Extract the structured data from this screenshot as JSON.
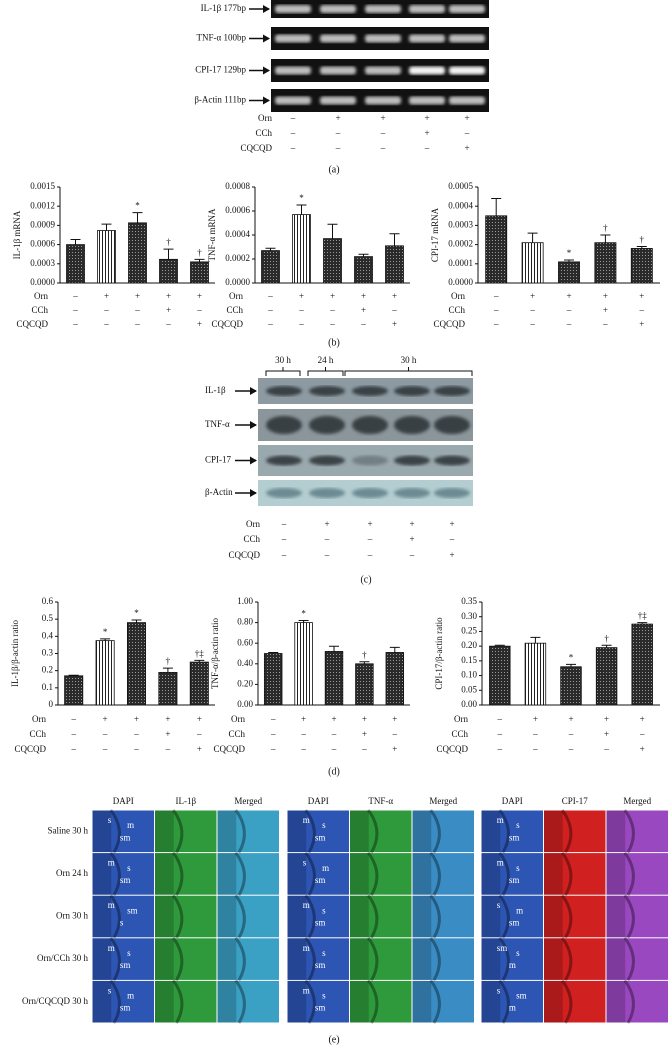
{
  "panel_labels": [
    "(a)",
    "(b)",
    "(c)",
    "(d)",
    "(e)"
  ],
  "conditions": [
    {
      "name": "Orn",
      "signs": [
        "–",
        "+",
        "+",
        "+",
        "+"
      ]
    },
    {
      "name": "CCh",
      "signs": [
        "–",
        "–",
        "–",
        "+",
        "–"
      ]
    },
    {
      "name": "CQCQD",
      "signs": [
        "–",
        "–",
        "–",
        "–",
        "+"
      ]
    }
  ],
  "panel_a": {
    "rows": [
      "IL-1β 177bp",
      "TNF-α 100bp",
      "CPI-17 129bp",
      "β-Actin 111bp"
    ]
  },
  "panel_c": {
    "time_brackets": [
      "30 h",
      "24 h",
      "30 h"
    ],
    "rows": [
      "IL-1β",
      "TNF-α",
      "CPI-17",
      "β-Actin"
    ]
  },
  "chart_data": [
    {
      "type": "bar",
      "y_label": "IL-1β mRNA",
      "values": [
        0.0006,
        0.00082,
        0.00094,
        0.00037,
        0.00033
      ],
      "errors": [
        8e-05,
        0.0001,
        0.00016,
        0.00016,
        4e-05
      ],
      "annotations": [
        null,
        null,
        "*",
        "†",
        "†"
      ],
      "bar_styles": [
        "crosshatch",
        "stripes",
        "crosshatch",
        "crosshatch",
        "crosshatch"
      ],
      "ylim": [
        0,
        0.0015
      ],
      "yticks": [
        {
          "value": 0,
          "label": "0.0000"
        },
        {
          "value": 0.0003,
          "label": "0.0003"
        },
        {
          "value": 0.0006,
          "label": "0.0006"
        },
        {
          "value": 0.0009,
          "label": "0.0009"
        },
        {
          "value": 0.0012,
          "label": "0.0012"
        },
        {
          "value": 0.0015,
          "label": "0.0015"
        }
      ]
    },
    {
      "type": "bar",
      "y_label": "TNF-α mRNA",
      "values": [
        0.00027,
        0.00057,
        0.00037,
        0.00022,
        0.00031
      ],
      "errors": [
        2e-05,
        8e-05,
        0.00012,
        2e-05,
        0.0001
      ],
      "annotations": [
        null,
        "*",
        null,
        null,
        null
      ],
      "bar_styles": [
        "crosshatch",
        "stripes",
        "crosshatch",
        "crosshatch",
        "crosshatch"
      ],
      "ylim": [
        0,
        0.0008
      ],
      "yticks": [
        {
          "value": 0,
          "label": "0.0000"
        },
        {
          "value": 0.0002,
          "label": "0.0002"
        },
        {
          "value": 0.0004,
          "label": "0.0004"
        },
        {
          "value": 0.0006,
          "label": "0.0006"
        },
        {
          "value": 0.0008,
          "label": "0.0008"
        }
      ]
    },
    {
      "type": "bar",
      "y_label": "CPI-17 mRNA",
      "values": [
        0.00035,
        0.00021,
        0.00011,
        0.00021,
        0.00018
      ],
      "errors": [
        9e-05,
        5e-05,
        1e-05,
        4e-05,
        1e-05
      ],
      "annotations": [
        null,
        null,
        "*",
        "†",
        "†"
      ],
      "bar_styles": [
        "crosshatch",
        "stripes",
        "crosshatch",
        "crosshatch",
        "crosshatch"
      ],
      "ylim": [
        0,
        0.0005
      ],
      "yticks": [
        {
          "value": 0,
          "label": "0.0000"
        },
        {
          "value": 0.0001,
          "label": "0.0001"
        },
        {
          "value": 0.0002,
          "label": "0.0002"
        },
        {
          "value": 0.0003,
          "label": "0.0003"
        },
        {
          "value": 0.0004,
          "label": "0.0004"
        },
        {
          "value": 0.0005,
          "label": "0.0005"
        }
      ]
    },
    {
      "type": "bar",
      "y_label": "IL-1β/β-actin ratio",
      "values": [
        0.17,
        0.375,
        0.48,
        0.19,
        0.25
      ],
      "errors": [
        0.003,
        0.01,
        0.015,
        0.025,
        0.01
      ],
      "annotations": [
        null,
        "*",
        "*",
        "†",
        "†‡"
      ],
      "bar_styles": [
        "crosshatch",
        "stripes",
        "crosshatch",
        "crosshatch",
        "crosshatch"
      ],
      "ylim": [
        0,
        0.6
      ],
      "yticks": [
        0,
        0.1,
        0.2,
        0.3,
        0.4,
        0.5,
        0.6
      ]
    },
    {
      "type": "bar",
      "y_label": "TNF-α/β-actin ratio",
      "values": [
        0.5,
        0.8,
        0.52,
        0.4,
        0.51
      ],
      "errors": [
        0.01,
        0.02,
        0.05,
        0.02,
        0.05
      ],
      "annotations": [
        null,
        "*",
        null,
        "†",
        null
      ],
      "bar_styles": [
        "crosshatch",
        "stripes",
        "crosshatch",
        "crosshatch",
        "crosshatch"
      ],
      "ylim": [
        0,
        1
      ],
      "yticks": [
        {
          "value": 0,
          "label": "0.00"
        },
        {
          "value": 0.2,
          "label": "0.20"
        },
        {
          "value": 0.4,
          "label": "0.40"
        },
        {
          "value": 0.6,
          "label": "0.60"
        },
        {
          "value": 0.8,
          "label": "0.80"
        },
        {
          "value": 1,
          "label": "1.00"
        }
      ]
    },
    {
      "type": "bar",
      "y_label": "CPI-17/β-actin ratio",
      "values": [
        0.2,
        0.21,
        0.13,
        0.195,
        0.275
      ],
      "errors": [
        0.003,
        0.02,
        0.008,
        0.008,
        0.005
      ],
      "annotations": [
        null,
        null,
        "*",
        "†",
        "†‡"
      ],
      "bar_styles": [
        "crosshatch",
        "stripes",
        "crosshatch",
        "crosshatch",
        "crosshatch"
      ],
      "ylim": [
        0,
        0.35
      ],
      "yticks": [
        {
          "value": 0,
          "label": "0.00"
        },
        {
          "value": 0.05,
          "label": "0.05"
        },
        {
          "value": 0.1,
          "label": "0.10"
        },
        {
          "value": 0.15,
          "label": "0.15"
        },
        {
          "value": 0.2,
          "label": "0.20"
        },
        {
          "value": 0.25,
          "label": "0.25"
        },
        {
          "value": 0.3,
          "label": "0.30"
        },
        {
          "value": 0.35,
          "label": "0.35"
        }
      ]
    }
  ],
  "panel_e": {
    "row_labels": [
      "Saline 30 h",
      "Orn 24 h",
      "Orn 30 h",
      "Orn/CCh 30 h",
      "Orn/CQCQD 30 h"
    ],
    "groups": [
      {
        "channels": [
          "DAPI",
          "IL-1β",
          "Merged"
        ],
        "colors": [
          "#2d55b4",
          "#2f9a3c",
          "#3aa0c4"
        ],
        "tissue_labels": [
          [
            "s",
            "m",
            "sm"
          ],
          [
            "m",
            "s",
            "sm"
          ],
          [
            "m",
            "sm",
            "s"
          ],
          [
            "m",
            "s",
            "sm"
          ],
          [
            "s",
            "m",
            "sm"
          ]
        ]
      },
      {
        "channels": [
          "DAPI",
          "TNF-α",
          "Merged"
        ],
        "colors": [
          "#2d55b4",
          "#2f9a3c",
          "#3a8cc4"
        ],
        "tissue_labels": [
          [
            "m",
            "s",
            "sm"
          ],
          [
            "s",
            "m",
            "sm"
          ],
          [
            "m",
            "s",
            "sm"
          ],
          [
            "m",
            "s",
            "sm"
          ],
          [
            "m",
            "s",
            "sm"
          ]
        ]
      },
      {
        "channels": [
          "DAPI",
          "CPI-17",
          "Merged"
        ],
        "colors": [
          "#2d55b4",
          "#d02020",
          "#9a48c0"
        ],
        "tissue_labels": [
          [
            "m",
            "s",
            "sm"
          ],
          [
            "m",
            "s",
            "sm"
          ],
          [
            "s",
            "m",
            "sm"
          ],
          [
            "sm",
            "s",
            "m"
          ],
          [
            "s",
            "sm",
            "m"
          ]
        ]
      }
    ]
  }
}
